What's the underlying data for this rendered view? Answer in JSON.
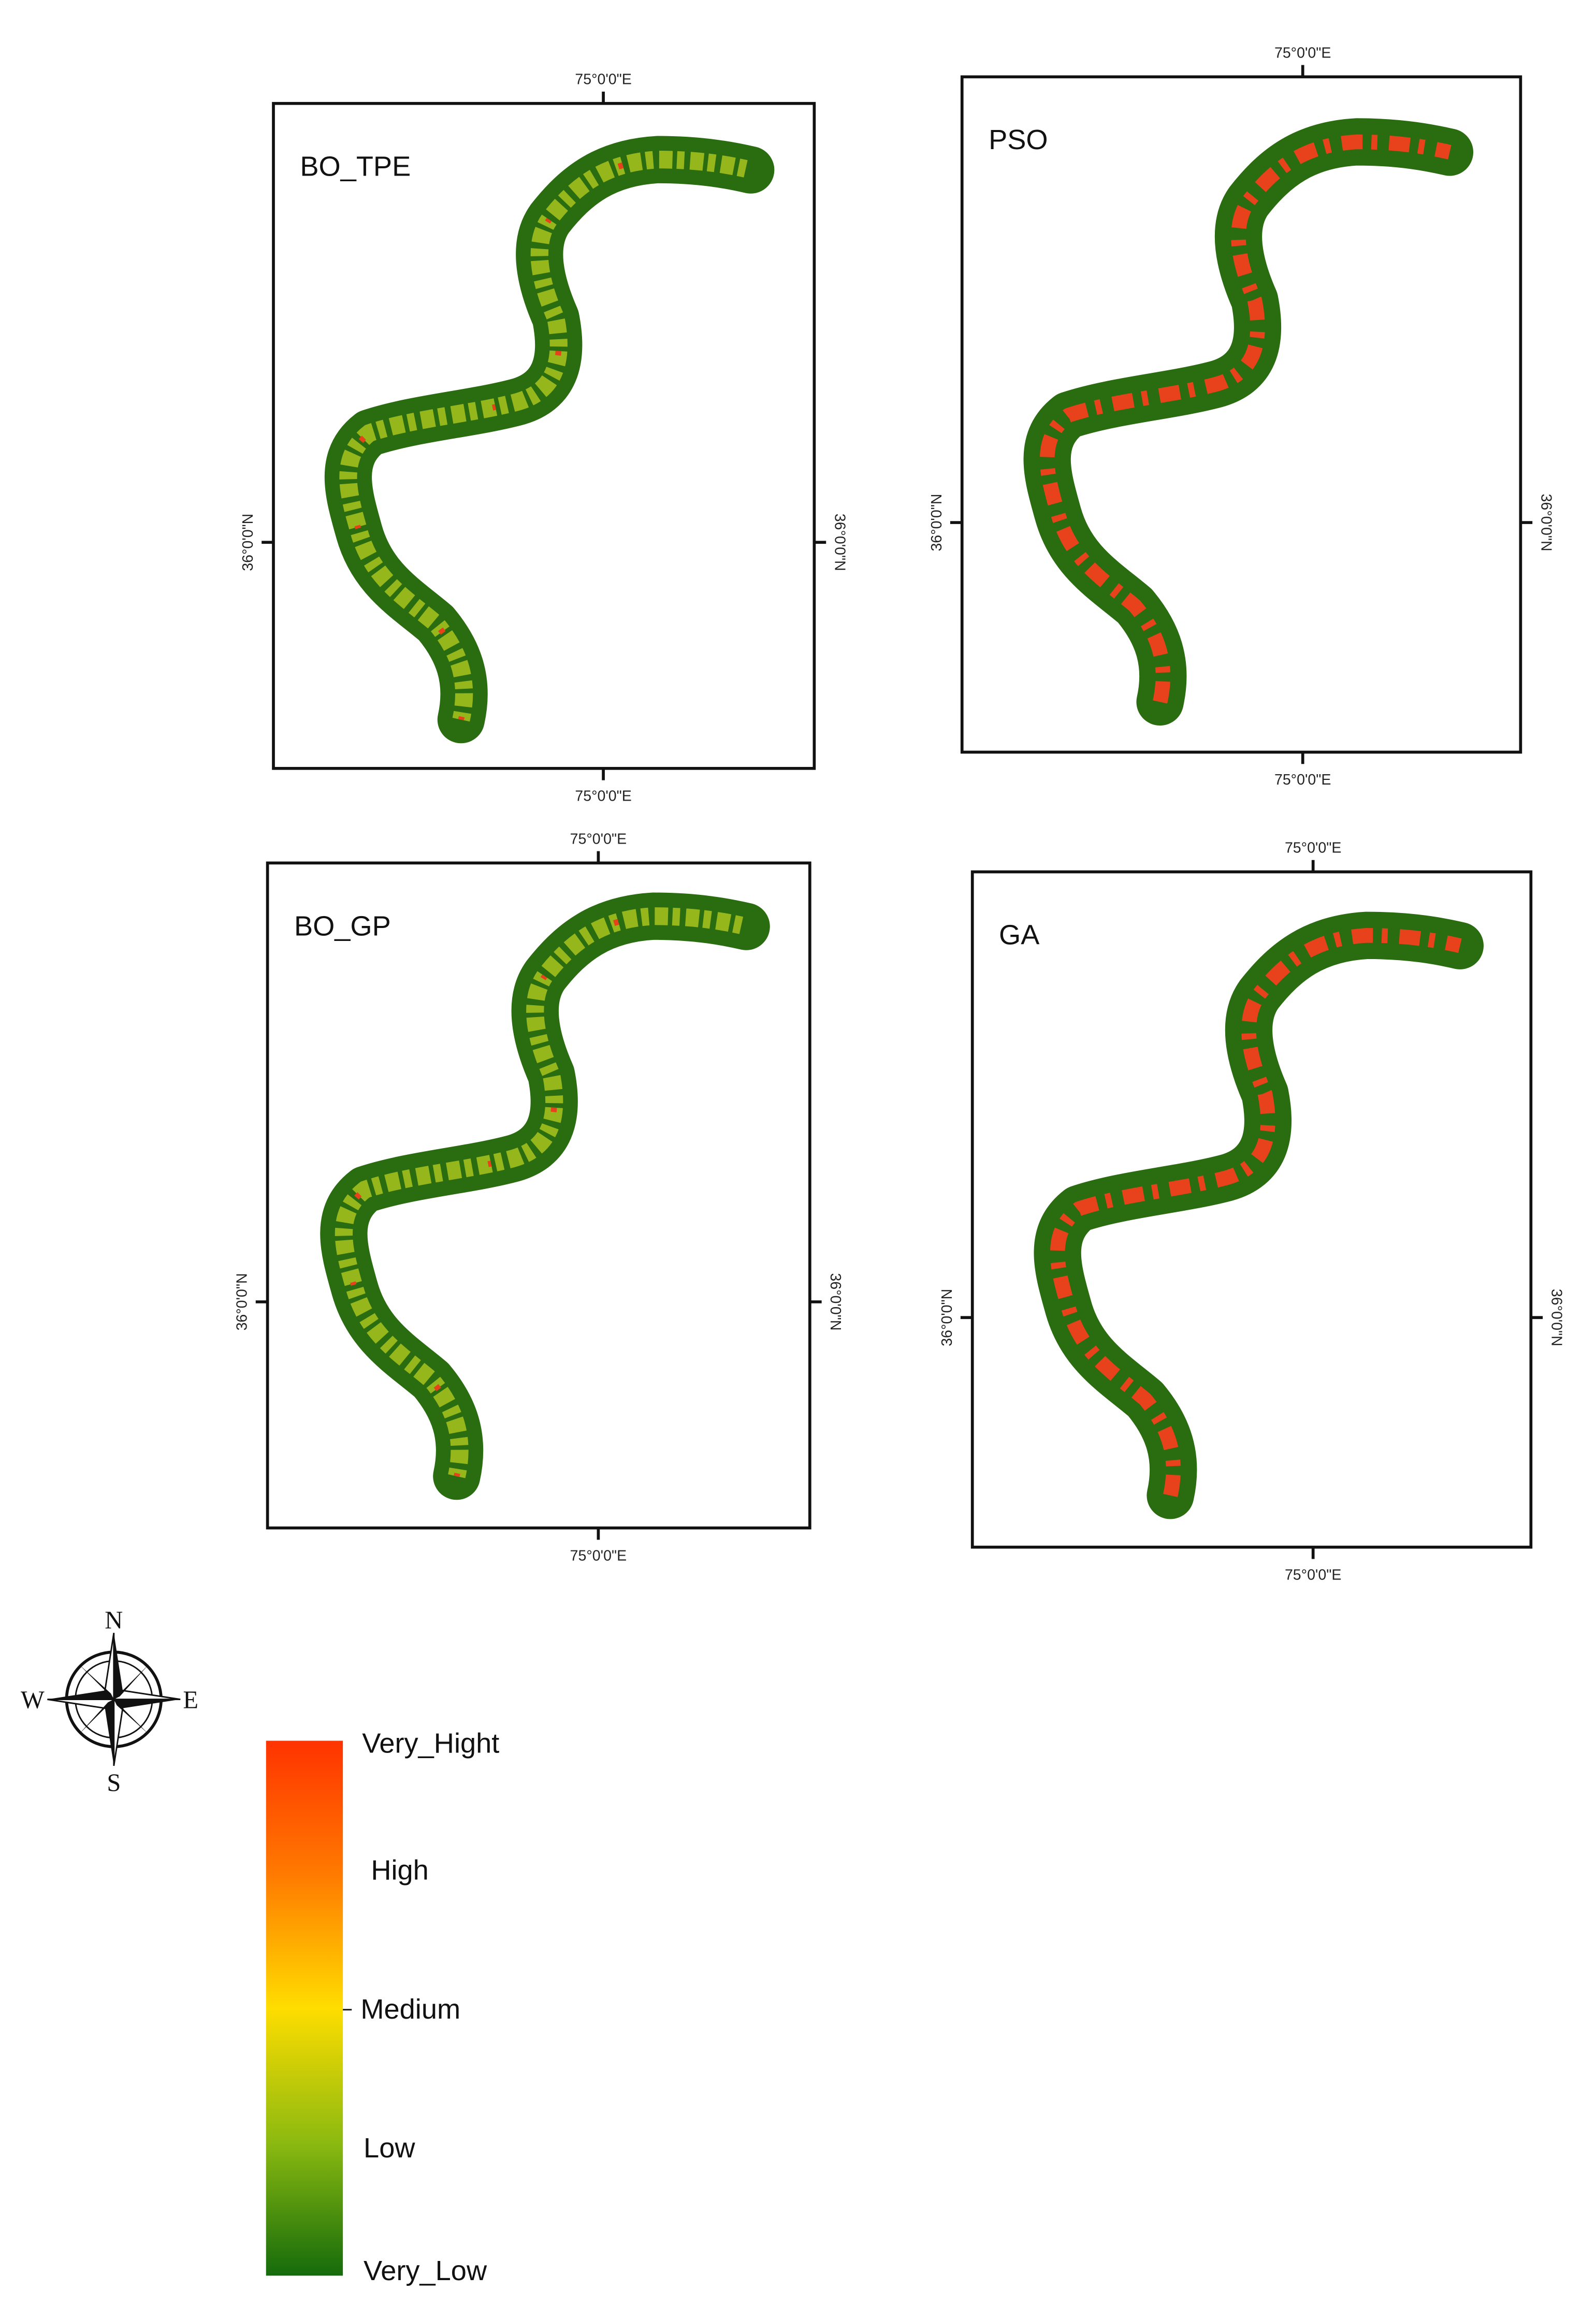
{
  "panels": [
    {
      "label": "BO_TPE",
      "top_label": "75°0'0\"E",
      "bottom_label": "75°0'0\"E",
      "left_label": "36°0'0\"N",
      "right_label": "36°0'0\"N"
    },
    {
      "label": "PSO",
      "top_label": "75°0'0\"E",
      "bottom_label": "75°0'0\"E",
      "left_label": "36°0'0\"N",
      "right_label": "36°0'0\"N"
    },
    {
      "label": "BO_GP",
      "top_label": "75°0'0\"E",
      "bottom_label": "75°0'0\"E",
      "left_label": "36°0'0\"N",
      "right_label": "36°0'0\"N"
    },
    {
      "label": "GA",
      "top_label": "75°0'0\"E",
      "bottom_label": "75°0'0\"E",
      "left_label": "36°0'0\"N",
      "right_label": "36°0'0\"N"
    }
  ],
  "compass": {
    "north": "N",
    "east": "E",
    "south": "S",
    "west": "W"
  },
  "legend": {
    "labels": [
      "Very_Hight",
      "High",
      "Medium",
      "Low",
      "Very_Low"
    ]
  }
}
